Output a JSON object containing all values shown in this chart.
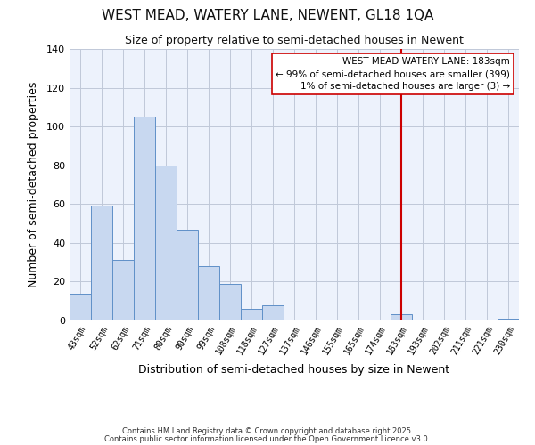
{
  "title": "WEST MEAD, WATERY LANE, NEWENT, GL18 1QA",
  "subtitle": "Size of property relative to semi-detached houses in Newent",
  "xlabel": "Distribution of semi-detached houses by size in Newent",
  "ylabel": "Number of semi-detached properties",
  "categories": [
    "43sqm",
    "52sqm",
    "62sqm",
    "71sqm",
    "80sqm",
    "90sqm",
    "99sqm",
    "108sqm",
    "118sqm",
    "127sqm",
    "137sqm",
    "146sqm",
    "155sqm",
    "165sqm",
    "174sqm",
    "183sqm",
    "193sqm",
    "202sqm",
    "211sqm",
    "221sqm",
    "230sqm"
  ],
  "bar_values": [
    14,
    59,
    31,
    105,
    80,
    47,
    28,
    19,
    6,
    8,
    0,
    0,
    0,
    0,
    0,
    3,
    0,
    0,
    0,
    0,
    1
  ],
  "bar_color": "#c8d8f0",
  "bar_edge_color": "#6090c8",
  "ylim": [
    0,
    140
  ],
  "yticks": [
    0,
    20,
    40,
    60,
    80,
    100,
    120,
    140
  ],
  "vline_x_index": 15,
  "vline_color": "#cc0000",
  "legend_title": "WEST MEAD WATERY LANE: 183sqm",
  "legend_line1": "← 99% of semi-detached houses are smaller (399)",
  "legend_line2": "1% of semi-detached houses are larger (3) →",
  "legend_box_color": "#cc0000",
  "background_color": "#edf2fc",
  "footer_line1": "Contains HM Land Registry data © Crown copyright and database right 2025.",
  "footer_line2": "Contains public sector information licensed under the Open Government Licence v3.0.",
  "title_fontsize": 11,
  "subtitle_fontsize": 9,
  "xlabel_fontsize": 9,
  "ylabel_fontsize": 9,
  "tick_fontsize": 8,
  "xtick_fontsize": 7,
  "footer_fontsize": 6,
  "legend_fontsize": 7.5
}
